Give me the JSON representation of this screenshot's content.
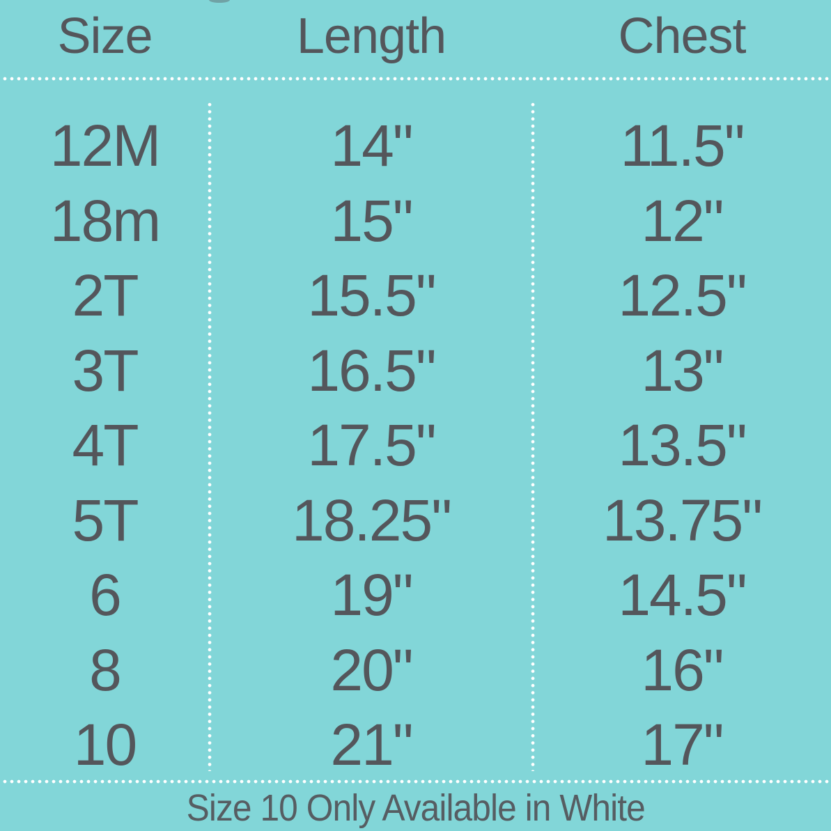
{
  "chart_data": {
    "type": "table",
    "headers": [
      "Size",
      "Length",
      "Chest"
    ],
    "rows": [
      {
        "size": "12M",
        "length": "14\"",
        "chest": "11.5\""
      },
      {
        "size": "18m",
        "length": "15\"",
        "chest": "12\""
      },
      {
        "size": "2T",
        "length": "15.5\"",
        "chest": "12.5\""
      },
      {
        "size": "3T",
        "length": "16.5\"",
        "chest": "13\""
      },
      {
        "size": "4T",
        "length": "17.5\"",
        "chest": "13.5\""
      },
      {
        "size": "5T",
        "length": "18.25\"",
        "chest": "13.75\""
      },
      {
        "size": "6",
        "length": "19\"",
        "chest": "14.5\""
      },
      {
        "size": "8",
        "length": "20\"",
        "chest": "16\""
      },
      {
        "size": "10",
        "length": "21\"",
        "chest": "17\""
      }
    ],
    "footer_note": "Size 10 Only Available in White",
    "layout_hints": {
      "grid": "3 columns separated by white dotted vertical lines",
      "rules": "white dotted horizontal rule under header and above footer"
    }
  },
  "colors": {
    "background": "#82d6d8",
    "text": "#54565b",
    "divider_dots": "#ffffff"
  }
}
